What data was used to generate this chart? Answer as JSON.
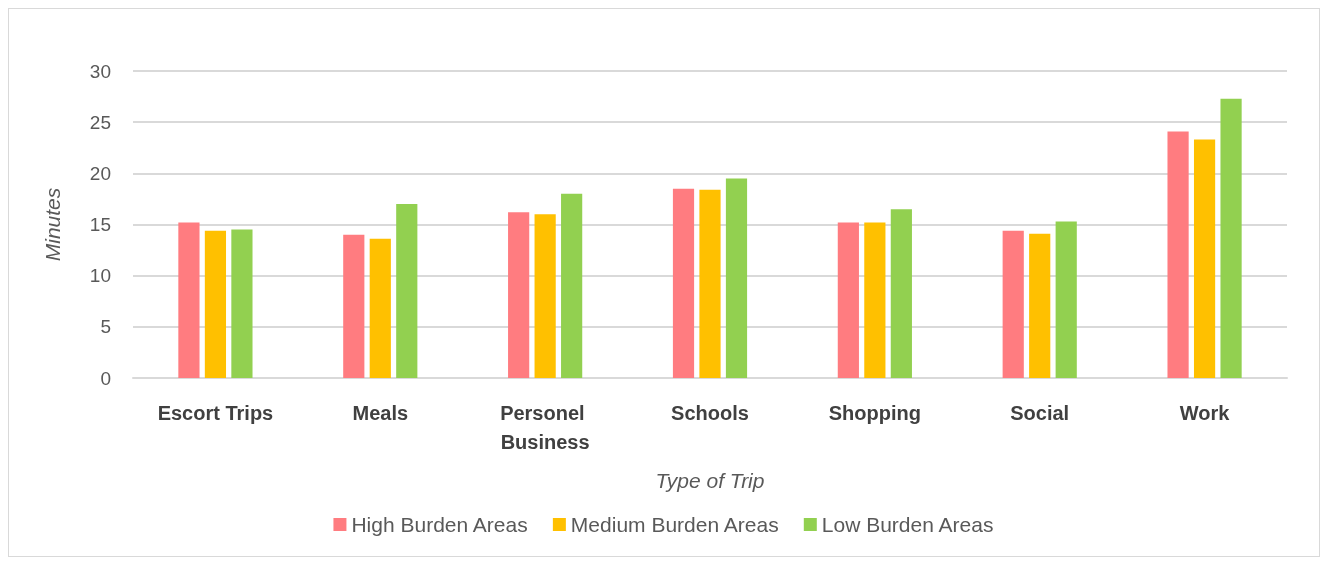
{
  "chart_data": {
    "type": "bar",
    "xlabel": "Type of Trip",
    "ylabel": "Minutes",
    "categories": [
      "Escort Trips",
      "Meals",
      "Personel Business",
      "Schools",
      "Shopping",
      "Social",
      "Work"
    ],
    "series": [
      {
        "name": "High Burden Areas",
        "color": "#ff7c80",
        "values": [
          15.2,
          14.0,
          16.2,
          18.5,
          15.2,
          14.4,
          24.1
        ]
      },
      {
        "name": "Medium Burden Areas",
        "color": "#ffc000",
        "values": [
          14.4,
          13.6,
          16.0,
          18.4,
          15.2,
          14.1,
          23.3
        ]
      },
      {
        "name": "Low Burden Areas",
        "color": "#92d050",
        "values": [
          14.5,
          17.0,
          18.0,
          19.5,
          16.5,
          15.3,
          27.3
        ]
      }
    ],
    "ylim": [
      0,
      30
    ],
    "yticks": [
      0,
      5,
      10,
      15,
      20,
      25,
      30
    ],
    "grid": "y",
    "legend": "bottom"
  }
}
